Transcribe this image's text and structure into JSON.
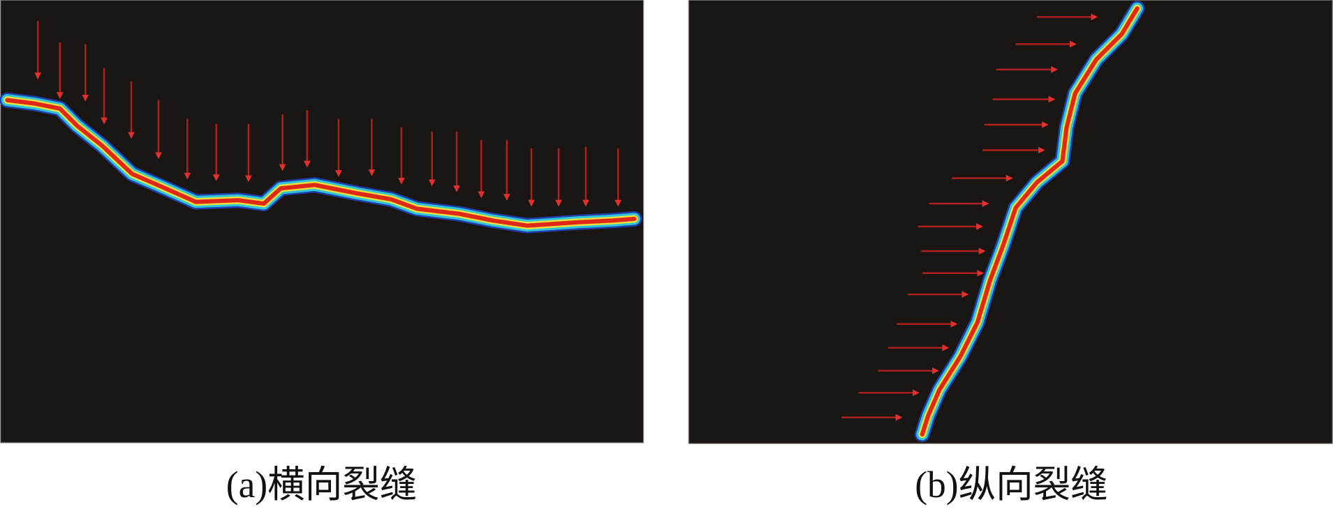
{
  "panels": [
    {
      "caption": "(a)横向裂缝"
    },
    {
      "caption": "(b)纵向裂缝"
    }
  ]
}
